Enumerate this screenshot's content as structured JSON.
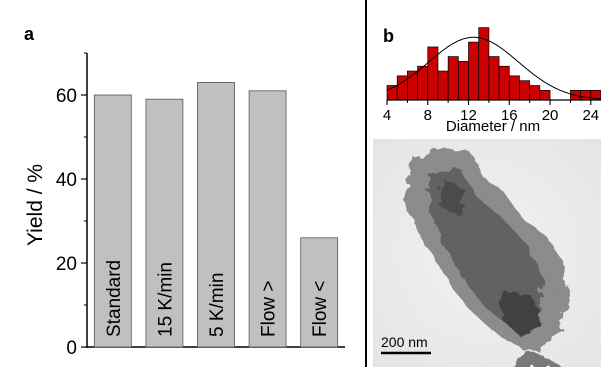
{
  "panels": {
    "a": {
      "label": "a"
    },
    "b": {
      "label": "b"
    }
  },
  "chart_data": [
    {
      "panel": "a",
      "type": "bar",
      "categories": [
        "Standard",
        "15 K/min",
        "5 K/min",
        "Flow >",
        "Flow <"
      ],
      "values": [
        60,
        59,
        63,
        61,
        26
      ],
      "ylabel": "Yield / %",
      "xlabel": "",
      "ylim": [
        0,
        70
      ],
      "yticks": [
        0,
        20,
        40,
        60
      ],
      "bar_color": "#c0c0c0",
      "category_labels_inside_bars": true,
      "grid": false
    },
    {
      "panel": "b",
      "type": "bar",
      "subtype": "histogram_with_fit",
      "x": [
        4.5,
        5.5,
        6.5,
        7.5,
        8.5,
        9.5,
        10.5,
        11.5,
        12.5,
        13.5,
        14.5,
        15.5,
        16.5,
        17.5,
        18.5,
        19.5,
        22.5,
        23.5,
        24.5
      ],
      "values": [
        3,
        5,
        6,
        7,
        11,
        6,
        9,
        8,
        12,
        15,
        9,
        7,
        5,
        4,
        3,
        2,
        2,
        2,
        2
      ],
      "bar_width": 1,
      "xlabel": "Diameter / nm",
      "xlim": [
        4,
        25
      ],
      "xticks": [
        4,
        8,
        12,
        16,
        20,
        24
      ],
      "ylim": [
        0,
        17
      ],
      "fit": {
        "type": "gaussian",
        "mean": 12.5,
        "sigma": 4.4,
        "peak": 13
      },
      "bar_color": "#cc0000",
      "grid": false
    }
  ],
  "tem_image": {
    "scale_bar_label": "200 nm"
  }
}
